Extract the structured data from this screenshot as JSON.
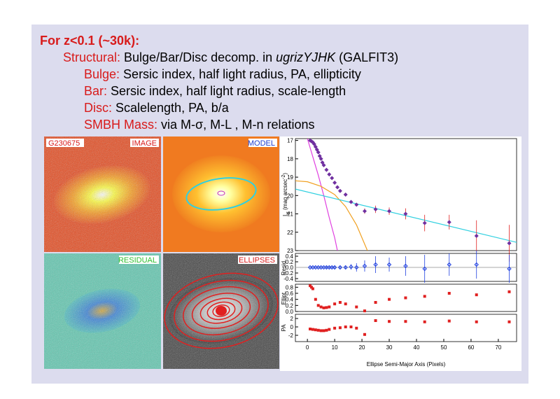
{
  "slide": {
    "heading": "For z<0.1 (~30k):",
    "lines": [
      {
        "key": "Structural:",
        "parts": [
          " Bulge/Bar/Disc decomp. in ",
          "ugrizYJHK",
          " (GALFIT3)"
        ]
      },
      {
        "key": "Bulge:",
        "parts": [
          " Sersic index, half light radius, PA, ellipticity"
        ]
      },
      {
        "key": "Bar:",
        "parts": [
          " Sersic index, half light radius, scale-length"
        ]
      },
      {
        "key": "Disc:",
        "parts": [
          " Scalelength, PA, b/a"
        ]
      },
      {
        "key": "SMBH Mass:",
        "parts": [
          " via M-σ, M-L , M-n relations"
        ]
      }
    ],
    "images": {
      "id": "G230675",
      "image": "IMAGE",
      "model": "MODEL",
      "residual": "RESIDUAL",
      "ellipses": "ELLIPSES"
    }
  },
  "chart_data": [
    {
      "type": "scatter",
      "ylabel": [
        "I",
        "K",
        " (mag arcsec",
        "-2",
        ")"
      ],
      "xlim": [
        -4.4,
        76.7
      ],
      "ylim": [
        16.9,
        23
      ],
      "y_inverted": true,
      "yticks": [
        17,
        18,
        19,
        20,
        21,
        22,
        23
      ],
      "series": [
        {
          "style": "line",
          "color": "#e040e0",
          "x": [
            0,
            2,
            4,
            6,
            8,
            10,
            11
          ],
          "values": [
            16.9,
            17.9,
            18.9,
            20,
            21.2,
            22.3,
            23
          ]
        },
        {
          "style": "line",
          "color": "#f0a020",
          "x": [
            -4.4,
            0,
            5,
            10,
            14,
            18,
            22
          ],
          "values": [
            19.2,
            19.25,
            19.5,
            19.95,
            20.6,
            21.6,
            23
          ]
        },
        {
          "style": "line",
          "color": "#30d0e0",
          "x": [
            -4.4,
            76.7
          ],
          "values": [
            19.65,
            22.55
          ]
        },
        {
          "style": "points",
          "marker": "diamond",
          "color": "#7030a0",
          "error_color": "#e02020",
          "x": [
            1,
            1.5,
            2,
            2.5,
            3,
            3.5,
            4,
            4.5,
            5,
            5.5,
            6,
            7,
            8,
            9,
            10,
            11,
            12,
            14,
            16,
            18,
            21,
            25,
            30,
            36,
            43,
            52,
            62,
            74
          ],
          "values": [
            17,
            17.05,
            17.1,
            17.2,
            17.35,
            17.5,
            17.65,
            17.85,
            18,
            18.2,
            18.35,
            18.6,
            18.85,
            19.05,
            19.3,
            19.55,
            19.75,
            19.95,
            20.35,
            20.5,
            20.85,
            20.75,
            20.85,
            21,
            21.5,
            21.45,
            22.2,
            22.6
          ],
          "errors": [
            0,
            0,
            0,
            0,
            0,
            0,
            0,
            0,
            0,
            0,
            0,
            0,
            0,
            0,
            0,
            0,
            0,
            0,
            0.05,
            0.08,
            0.15,
            0.2,
            0.2,
            0.3,
            0.45,
            0.4,
            0.85,
            1
          ]
        }
      ]
    },
    {
      "type": "scatter",
      "ylabel": [
        "Resid."
      ],
      "xlim": [
        -4.4,
        76.7
      ],
      "ylim": [
        -0.5,
        0.5
      ],
      "yticks": [
        0.4,
        0.2,
        {
          "value": 0,
          "label": "0.0"
        },
        -0.2,
        -0.4
      ],
      "series": [
        {
          "style": "points",
          "marker": "circle",
          "color": "#2040e0",
          "error_color": "#2040e0",
          "x": [
            1,
            2,
            3,
            4,
            5,
            6,
            7,
            8,
            9,
            10,
            12,
            14,
            16,
            18,
            21,
            25,
            30,
            36,
            43,
            52,
            62,
            74
          ],
          "values": [
            0,
            0,
            0,
            0,
            0,
            0,
            0,
            0,
            0,
            0,
            0,
            0,
            0.02,
            0,
            0.05,
            0.1,
            0.1,
            0.05,
            -0.05,
            0.1,
            0.1,
            -0.05
          ],
          "errors": [
            0.02,
            0.02,
            0.02,
            0.02,
            0.02,
            0.02,
            0.03,
            0.03,
            0.03,
            0.04,
            0.05,
            0.06,
            0.1,
            0.15,
            0.2,
            0.3,
            0.25,
            0.35,
            0.5,
            0.4,
            0.5,
            0.5
          ]
        }
      ]
    },
    {
      "type": "scatter",
      "ylabel": [
        "Ellipt."
      ],
      "xlim": [
        -4.4,
        76.7
      ],
      "ylim": [
        0,
        0.9
      ],
      "yticks": [
        {
          "value": 0,
          "label": "0.0"
        },
        0.2,
        0.4,
        0.6,
        0.8
      ],
      "series": [
        {
          "style": "points",
          "marker": "square",
          "color": "#e02020",
          "x": [
            1,
            1.5,
            2,
            3,
            4,
            5,
            6,
            7,
            8,
            10,
            12,
            14,
            18,
            21,
            25,
            30,
            36,
            43,
            52,
            62,
            74
          ],
          "values": [
            0.85,
            0.8,
            0.75,
            0.4,
            0.2,
            0.15,
            0.12,
            0.13,
            0.15,
            0.25,
            0.3,
            0.25,
            0.15,
            0.02,
            0.3,
            0.4,
            0.45,
            0.5,
            0.6,
            0.55,
            0.65
          ]
        }
      ]
    },
    {
      "type": "scatter",
      "ylabel": [
        "PA"
      ],
      "xlabel": "Ellipse Semi-Major Axis (Pixels)",
      "xlim": [
        -4.4,
        76.7
      ],
      "ylim": [
        -3.5,
        3
      ],
      "yticks": [
        2,
        0,
        -2
      ],
      "xticks": [
        0,
        10,
        20,
        30,
        40,
        50,
        60,
        70
      ],
      "series": [
        {
          "style": "points",
          "marker": "square",
          "color": "#e02020",
          "x": [
            1,
            2,
            3,
            4,
            5,
            6,
            7,
            8,
            10,
            12,
            14,
            16,
            18,
            21,
            25,
            30,
            36,
            43,
            52,
            62,
            74
          ],
          "values": [
            -0.5,
            -0.6,
            -0.7,
            -0.8,
            -0.9,
            -0.9,
            -0.8,
            -0.6,
            -0.3,
            -0.2,
            0,
            0,
            -0.3,
            -1.8,
            1.5,
            1.3,
            1.3,
            1.2,
            1.4,
            1.2,
            1.2
          ]
        }
      ]
    }
  ]
}
